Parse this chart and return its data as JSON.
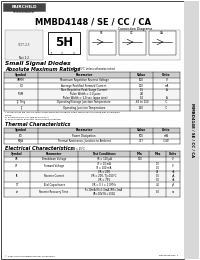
{
  "title": "MMBD4148 / SE / CC / CA",
  "subtitle": "Small Signal Diodes",
  "bg_color": "#ffffff",
  "side_label": "MMBD4148 / SE / CC / CA",
  "abs_max_title": "Absolute Maximum Ratings",
  "abs_max_note": "TA = 25°C unless otherwise noted",
  "abs_max_headers": [
    "Symbol",
    "Parameter",
    "Value",
    "Units"
  ],
  "abs_max_rows": [
    [
      "VRRM",
      "Maximum Repetitive Reverse Voltage",
      "100",
      "V"
    ],
    [
      "IO",
      "Average Rectified Forward Current",
      "200",
      "mA"
    ],
    [
      "IFSM",
      "Non-Repetitive Peak Fwd Surge Current\n Pulse Width = 1.0 μsec\n Pulse Width = 1.0 sec (appx sine)",
      "1.5\n4.0\n1.0",
      "A"
    ],
    [
      "TJ, Tstg",
      "Operating/Storage Junction Temperature",
      "-65 to 150",
      "°C"
    ],
    [
      "TJ",
      "Operating Junction Temperature",
      "150",
      "°C"
    ]
  ],
  "thermal_title": "Thermal Characteristics",
  "thermal_headers": [
    "Symbol",
    "Parameter",
    "Value",
    "Units"
  ],
  "thermal_rows": [
    [
      "PD",
      "Power Dissipation",
      "500",
      "mW"
    ],
    [
      "RθJA",
      "Thermal Resistance, Junction to Ambient",
      "357",
      "°C/W"
    ]
  ],
  "elec_title": "Electrical Characteristics",
  "elec_note": "TA = 25°C",
  "elec_headers": [
    "Symbol",
    "Parameter",
    "Test Conditions",
    "Min",
    "Max",
    "Units"
  ],
  "elec_rows": [
    [
      "VR",
      "Breakdown Voltage",
      "IR = 100 μA",
      "100",
      "",
      "V"
    ],
    [
      "VF",
      "Forward Voltage",
      "IF = 10 mA\nIF = 100 mA",
      "",
      "1.0\n1.0",
      "V"
    ],
    [
      "IR",
      "Reverse Current",
      "VR = 20V\nVR = 20V, TJ = 100°C\nVR = 75V",
      "",
      "25\n1.0\n5.0",
      "nA\nμA\nnA"
    ],
    [
      "CT",
      "Total Capacitance",
      "VR = 0, f = 1.0MHz",
      "",
      "4.0",
      "pF"
    ],
    [
      "trr",
      "Reverse Recovery Time",
      "IF = 10mA, IR = 1.0mA, IRR = 1.0mA\nVR = 10V, RL = 100Ω",
      "",
      "8.0",
      "ns"
    ]
  ],
  "footer": "© 2001 Fairchild Semiconductor Corporation",
  "revision": "DS012128 Rev. 1",
  "col_x_abs": [
    4,
    38,
    130,
    153,
    180
  ],
  "col_x_el": [
    4,
    30,
    78,
    130,
    149,
    166,
    180
  ]
}
